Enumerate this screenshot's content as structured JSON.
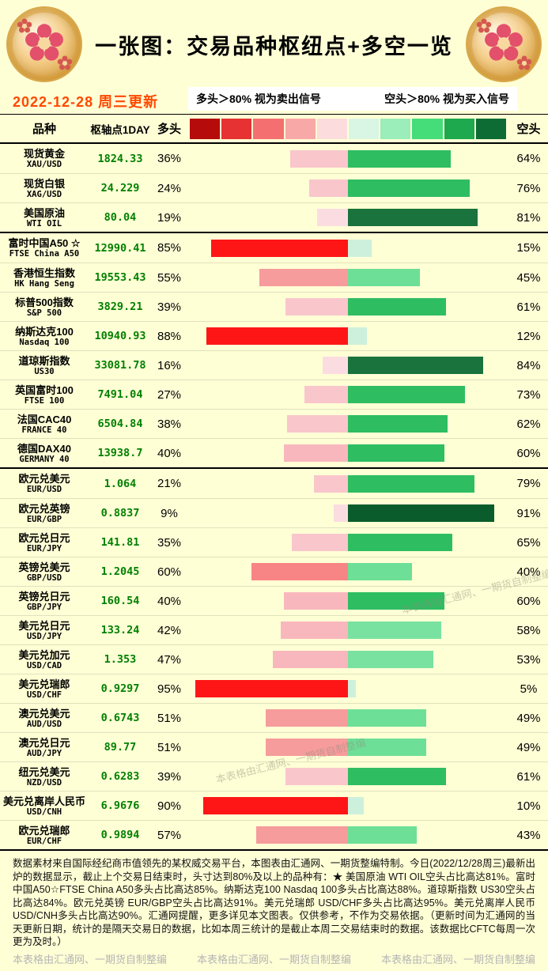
{
  "page": {
    "title": "一张图：交易品种枢纽点+多空一览",
    "updated": "2022-12-28 周三更新",
    "legend": {
      "long_rule": "多头＞80% 视为卖出信号",
      "short_rule": "空头＞80% 视为买入信号"
    },
    "table_header": {
      "instrument": "品种",
      "pivot": "枢轴点1DAY",
      "long": "多头",
      "short": "空头"
    },
    "colors": {
      "background": "#ffffd6",
      "pivot_green": "#008000",
      "date_red": "#ff4800",
      "watermark_gray": "#b5b5b5"
    },
    "scale_colors": [
      "#b50b0b",
      "#e63232",
      "#f47070",
      "#f9a8a8",
      "#fcdcdc",
      "#d9f5e4",
      "#9bedb9",
      "#45dc7a",
      "#1ea94f",
      "#0c6c33"
    ],
    "bar_palette": {
      "long": [
        [
          80,
          "#fe1616"
        ],
        [
          60,
          "#f88585"
        ],
        [
          50,
          "#f69c9c"
        ],
        [
          40,
          "#f8b7bd"
        ],
        [
          20,
          "#f9c6cc"
        ],
        [
          0,
          "#fbdde1"
        ]
      ],
      "short": [
        [
          90,
          "#0b5c2c"
        ],
        [
          80,
          "#1a723c"
        ],
        [
          60,
          "#2fbd62"
        ],
        [
          50,
          "#7ae2a0"
        ],
        [
          40,
          "#6edf97"
        ],
        [
          20,
          "#bceecf"
        ],
        [
          0,
          "#cdf0dd"
        ]
      ]
    },
    "footer_note": "数据素材来自国际经纪商市值领先的某权威交易平台，本图表由汇通网、一期货整编特制。今日(2022/12/28周三)最新出炉的数据显示，截止上个交易日结束时，头寸达到80%及以上的品种有：★ 美国原油 WTI OIL空头占比高达81%。富时中国A50☆FTSE China A50多头占比高达85%。纳斯达克100 Nasdaq 100多头占比高达88%。道琼斯指数 US30空头占比高达84%。欧元兑英镑 EUR/GBP空头占比高达91%。美元兑瑞郎 USD/CHF多头占比高达95%。美元兑离岸人民币 USD/CNH多头占比高达90%。汇通网提醒，更多详见本文图表。仅供参考，不作为交易依据。（更新时间为汇通网的当天更新日期，统计的是隔天交易日的数据，比如本周三统计的是截止本周二交易结束时的数据。该数据比CFTC每周一次更为及时。）",
    "watermark": "本表格由汇通网、一期货自制整编"
  },
  "chart_data": {
    "type": "bar",
    "orientation": "horizontal-diverging-stacked",
    "title": "一张图：交易品种枢纽点+多空一览",
    "updated": "2022-12-28 周三更新",
    "unit": "%",
    "series_names": [
      "多头",
      "空头"
    ],
    "legend": [
      "多头＞80% 视为卖出信号",
      "空头＞80% 视为买入信号"
    ],
    "groups": [
      {
        "id": "commodities",
        "rows": [
          {
            "name": "现货黄金",
            "code": "XAU/USD",
            "pivot": "1824.33",
            "long": 36,
            "short": 64
          },
          {
            "name": "现货白银",
            "code": "XAG/USD",
            "pivot": "24.229",
            "long": 24,
            "short": 76
          },
          {
            "name": "美国原油",
            "code": "WTI OIL",
            "pivot": "80.04",
            "long": 19,
            "short": 81
          }
        ]
      },
      {
        "id": "indices",
        "rows": [
          {
            "name": "富时中国A50 ☆",
            "code": "FTSE China A50",
            "pivot": "12990.41",
            "long": 85,
            "short": 15
          },
          {
            "name": "香港恒生指数",
            "code": "HK Hang Seng",
            "pivot": "19553.43",
            "long": 55,
            "short": 45
          },
          {
            "name": "标普500指数",
            "code": "S&P 500",
            "pivot": "3829.21",
            "long": 39,
            "short": 61
          },
          {
            "name": "纳斯达克100",
            "code": "Nasdaq 100",
            "pivot": "10940.93",
            "long": 88,
            "short": 12
          },
          {
            "name": "道琼斯指数",
            "code": "US30",
            "pivot": "33081.78",
            "long": 16,
            "short": 84
          },
          {
            "name": "英国富时100",
            "code": "FTSE 100",
            "pivot": "7491.04",
            "long": 27,
            "short": 73
          },
          {
            "name": "法国CAC40",
            "code": "FRANCE 40",
            "pivot": "6504.84",
            "long": 38,
            "short": 62
          },
          {
            "name": "德国DAX40",
            "code": "GERMANY 40",
            "pivot": "13938.7",
            "long": 40,
            "short": 60
          }
        ]
      },
      {
        "id": "forex",
        "rows": [
          {
            "name": "欧元兑美元",
            "code": "EUR/USD",
            "pivot": "1.064",
            "long": 21,
            "short": 79
          },
          {
            "name": "欧元兑英镑",
            "code": "EUR/GBP",
            "pivot": "0.8837",
            "long": 9,
            "short": 91
          },
          {
            "name": "欧元兑日元",
            "code": "EUR/JPY",
            "pivot": "141.81",
            "long": 35,
            "short": 65
          },
          {
            "name": "英镑兑美元",
            "code": "GBP/USD",
            "pivot": "1.2045",
            "long": 60,
            "short": 40
          },
          {
            "name": "英镑兑日元",
            "code": "GBP/JPY",
            "pivot": "160.54",
            "long": 40,
            "short": 60
          },
          {
            "name": "美元兑日元",
            "code": "USD/JPY",
            "pivot": "133.24",
            "long": 42,
            "short": 58
          },
          {
            "name": "美元兑加元",
            "code": "USD/CAD",
            "pivot": "1.353",
            "long": 47,
            "short": 53
          },
          {
            "name": "美元兑瑞郎",
            "code": "USD/CHF",
            "pivot": "0.9297",
            "long": 95,
            "short": 5
          },
          {
            "name": "澳元兑美元",
            "code": "AUD/USD",
            "pivot": "0.6743",
            "long": 51,
            "short": 49
          },
          {
            "name": "澳元兑日元",
            "code": "AUD/JPY",
            "pivot": "89.77",
            "long": 51,
            "short": 49
          },
          {
            "name": "纽元兑美元",
            "code": "NZD/USD",
            "pivot": "0.6283",
            "long": 39,
            "short": 61
          },
          {
            "name": "美元兑离岸人民币",
            "code": "USD/CNH",
            "pivot": "6.9676",
            "long": 90,
            "short": 10
          },
          {
            "name": "欧元兑瑞郎",
            "code": "EUR/CHF",
            "pivot": "0.9894",
            "long": 57,
            "short": 43
          }
        ]
      }
    ]
  }
}
